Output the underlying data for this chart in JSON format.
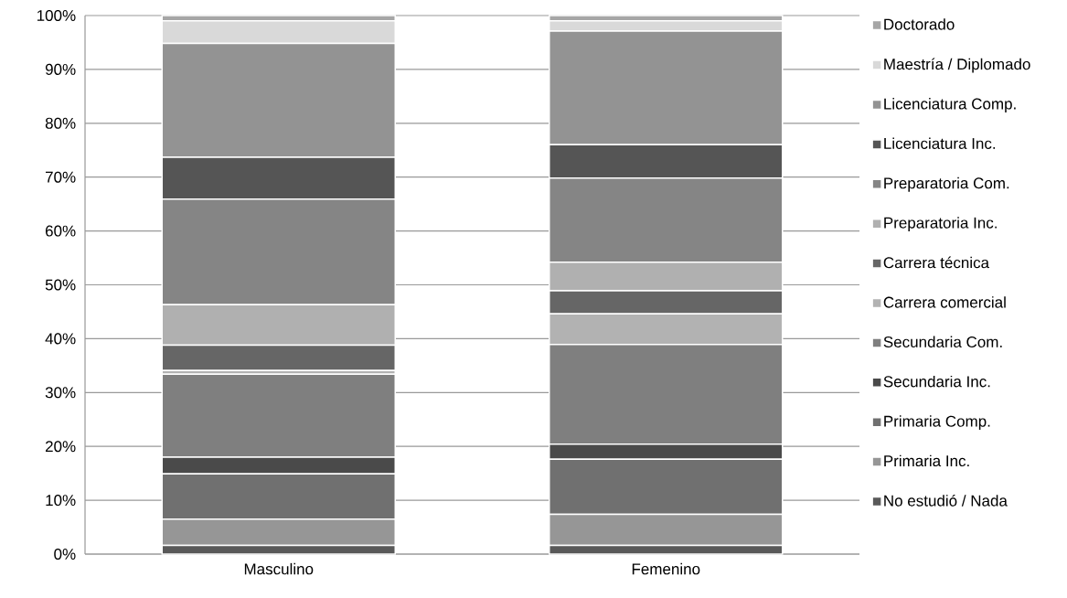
{
  "chart_data": {
    "type": "bar",
    "stacked": true,
    "categories": [
      "Masculino",
      "Femenino"
    ],
    "ylim": [
      0,
      100
    ],
    "yticks": [
      {
        "value": 0,
        "label": "0%"
      },
      {
        "value": 10,
        "label": "10%"
      },
      {
        "value": 20,
        "label": "20%"
      },
      {
        "value": 30,
        "label": "30%"
      },
      {
        "value": 40,
        "label": "40%"
      },
      {
        "value": 50,
        "label": "50%"
      },
      {
        "value": 60,
        "label": "60%"
      },
      {
        "value": 70,
        "label": "70%"
      },
      {
        "value": 80,
        "label": "80%"
      },
      {
        "value": 90,
        "label": "90%"
      },
      {
        "value": 100,
        "label": "100%"
      }
    ],
    "grid": "y",
    "legend": "right",
    "series": [
      {
        "name": "No estudió / Nada",
        "color": "#595959",
        "values": [
          1.6,
          1.6
        ]
      },
      {
        "name": "Primaria Inc.",
        "color": "#969696",
        "values": [
          4.9,
          5.8
        ]
      },
      {
        "name": "Primaria Comp.",
        "color": "#707070",
        "values": [
          8.4,
          10.2
        ]
      },
      {
        "name": "Secundaria Inc.",
        "color": "#4a4a4a",
        "values": [
          3.1,
          2.8
        ]
      },
      {
        "name": "Secundaria Com.",
        "color": "#7f7f7f",
        "values": [
          15.4,
          18.5
        ]
      },
      {
        "name": "Carrera comercial",
        "color": "#b2b2b2",
        "values": [
          0.7,
          5.7
        ]
      },
      {
        "name": "Carrera técnica",
        "color": "#666666",
        "values": [
          4.7,
          4.3
        ]
      },
      {
        "name": "Preparatoria Inc.",
        "color": "#b0b0b0",
        "values": [
          7.5,
          5.3
        ]
      },
      {
        "name": "Preparatoria Com.",
        "color": "#858585",
        "values": [
          19.6,
          15.6
        ]
      },
      {
        "name": "Licenciatura Inc.",
        "color": "#555555",
        "values": [
          7.8,
          6.2
        ]
      },
      {
        "name": "Licenciatura Comp.",
        "color": "#939393",
        "values": [
          21.1,
          21.1
        ]
      },
      {
        "name": "Maestría / Diplomado",
        "color": "#d9d9d9",
        "values": [
          4.2,
          1.9
        ]
      },
      {
        "name": "Doctorado",
        "color": "#a6a6a6",
        "values": [
          1.0,
          1.0
        ]
      }
    ]
  }
}
